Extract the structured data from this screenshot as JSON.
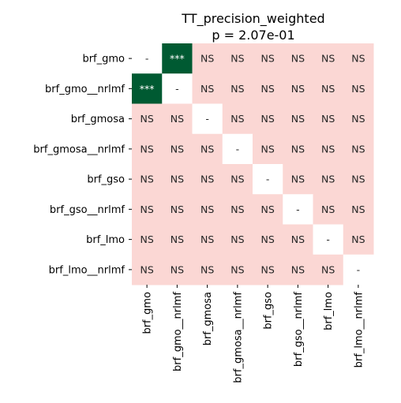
{
  "chart_data": {
    "type": "heatmap",
    "title": "TT_precision_weighted",
    "subtitle": "p = 2.07e-01",
    "labels": [
      "brf_gmo",
      "brf_gmo__nrlmf",
      "brf_gmosa",
      "brf_gmosa__nrlmf",
      "brf_gso",
      "brf_gso__nrlmf",
      "brf_lmo",
      "brf_lmo__nrlmf"
    ],
    "cells": [
      [
        "-",
        "***",
        "NS",
        "NS",
        "NS",
        "NS",
        "NS",
        "NS"
      ],
      [
        "***",
        "-",
        "NS",
        "NS",
        "NS",
        "NS",
        "NS",
        "NS"
      ],
      [
        "NS",
        "NS",
        "-",
        "NS",
        "NS",
        "NS",
        "NS",
        "NS"
      ],
      [
        "NS",
        "NS",
        "NS",
        "-",
        "NS",
        "NS",
        "NS",
        "NS"
      ],
      [
        "NS",
        "NS",
        "NS",
        "NS",
        "-",
        "NS",
        "NS",
        "NS"
      ],
      [
        "NS",
        "NS",
        "NS",
        "NS",
        "NS",
        "-",
        "NS",
        "NS"
      ],
      [
        "NS",
        "NS",
        "NS",
        "NS",
        "NS",
        "NS",
        "-",
        "NS"
      ],
      [
        "NS",
        "NS",
        "NS",
        "NS",
        "NS",
        "NS",
        "NS",
        "-"
      ]
    ],
    "colors": {
      "significant": "#005a32",
      "not_significant": "#fbd7d4",
      "diagonal": "#ffffff",
      "significant_text": "#ffffff",
      "text": "#262626"
    },
    "colorbar": false,
    "grid": false
  }
}
